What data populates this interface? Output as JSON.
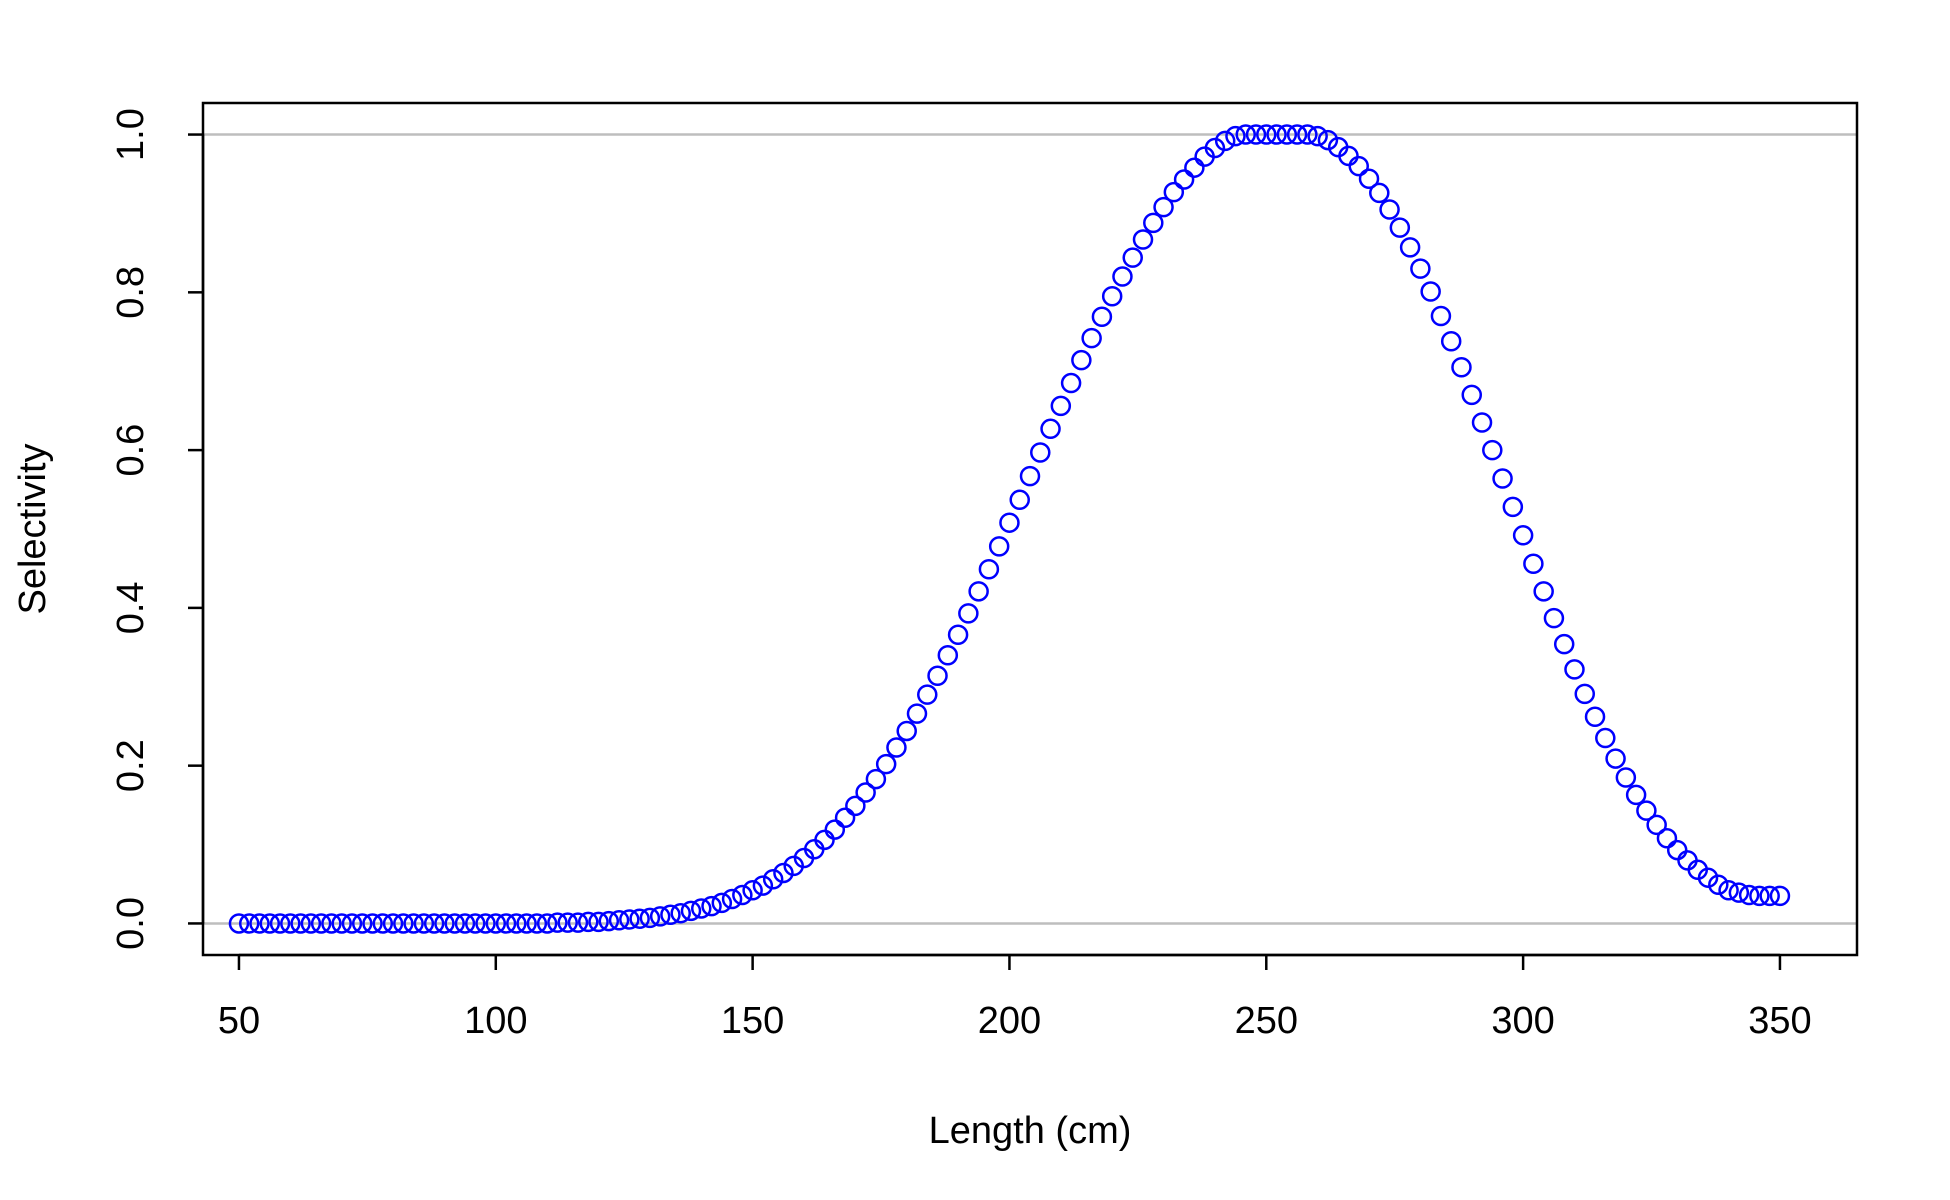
{
  "chart_data": {
    "type": "scatter",
    "title": "",
    "xlabel": "Length (cm)",
    "ylabel": "Selectivity",
    "xlim": [
      43,
      365
    ],
    "ylim": [
      -0.04,
      1.04
    ],
    "x_ticks": [
      50,
      100,
      150,
      200,
      250,
      300,
      350
    ],
    "y_ticks": [
      0.0,
      0.2,
      0.4,
      0.6,
      0.8,
      1.0
    ],
    "x_tick_labels": [
      "50",
      "100",
      "150",
      "200",
      "250",
      "300",
      "350"
    ],
    "y_tick_labels": [
      "0.0",
      "0.2",
      "0.4",
      "0.6",
      "0.8",
      "1.0"
    ],
    "reference_lines_y": [
      0,
      1
    ],
    "marker": "open-circle",
    "grid": false,
    "legend": "none",
    "x": [
      50,
      52,
      54,
      56,
      58,
      60,
      62,
      64,
      66,
      68,
      70,
      72,
      74,
      76,
      78,
      80,
      82,
      84,
      86,
      88,
      90,
      92,
      94,
      96,
      98,
      100,
      102,
      104,
      106,
      108,
      110,
      112,
      114,
      116,
      118,
      120,
      122,
      124,
      126,
      128,
      130,
      132,
      134,
      136,
      138,
      140,
      142,
      144,
      146,
      148,
      150,
      152,
      154,
      156,
      158,
      160,
      162,
      164,
      166,
      168,
      170,
      172,
      174,
      176,
      178,
      180,
      182,
      184,
      186,
      188,
      190,
      192,
      194,
      196,
      198,
      200,
      202,
      204,
      206,
      208,
      210,
      212,
      214,
      216,
      218,
      220,
      222,
      224,
      226,
      228,
      230,
      232,
      234,
      236,
      238,
      240,
      242,
      244,
      246,
      248,
      250,
      252,
      254,
      256,
      258,
      260,
      262,
      264,
      266,
      268,
      270,
      272,
      274,
      276,
      278,
      280,
      282,
      284,
      286,
      288,
      290,
      292,
      294,
      296,
      298,
      300,
      302,
      304,
      306,
      308,
      310,
      312,
      314,
      316,
      318,
      320,
      322,
      324,
      326,
      328,
      330,
      332,
      334,
      336,
      338,
      340,
      342,
      344,
      346,
      348,
      350
    ],
    "y": [
      0.0,
      0.0,
      0.0,
      0.0,
      0.0,
      0.0,
      0.0,
      0.0,
      0.0,
      0.0,
      0.0,
      0.0,
      0.0,
      0.0,
      0.0,
      0.0,
      0.0,
      0.0,
      0.0,
      0.0,
      0.0,
      0.0,
      0.0,
      0.0,
      0.0,
      0.0,
      0.0,
      0.0,
      0.0,
      0.0,
      0.0,
      0.001,
      0.001,
      0.001,
      0.002,
      0.002,
      0.003,
      0.004,
      0.005,
      0.006,
      0.007,
      0.009,
      0.011,
      0.013,
      0.016,
      0.019,
      0.022,
      0.026,
      0.031,
      0.036,
      0.042,
      0.048,
      0.056,
      0.064,
      0.073,
      0.083,
      0.094,
      0.106,
      0.119,
      0.134,
      0.149,
      0.166,
      0.183,
      0.202,
      0.223,
      0.244,
      0.266,
      0.29,
      0.314,
      0.34,
      0.366,
      0.393,
      0.421,
      0.449,
      0.478,
      0.508,
      0.537,
      0.567,
      0.597,
      0.627,
      0.656,
      0.685,
      0.714,
      0.742,
      0.769,
      0.795,
      0.82,
      0.844,
      0.867,
      0.888,
      0.908,
      0.927,
      0.943,
      0.958,
      0.972,
      0.983,
      0.992,
      0.998,
      1.0,
      1.0,
      1.0,
      1.0,
      1.0,
      1.0,
      1.0,
      0.998,
      0.993,
      0.984,
      0.973,
      0.96,
      0.944,
      0.926,
      0.905,
      0.882,
      0.857,
      0.83,
      0.801,
      0.77,
      0.738,
      0.705,
      0.67,
      0.635,
      0.6,
      0.564,
      0.528,
      0.492,
      0.456,
      0.421,
      0.387,
      0.354,
      0.322,
      0.291,
      0.262,
      0.235,
      0.209,
      0.185,
      0.163,
      0.143,
      0.125,
      0.108,
      0.093,
      0.08,
      0.068,
      0.058,
      0.049,
      0.042,
      0.039,
      0.036,
      0.035,
      0.035,
      0.035
    ],
    "colors": {
      "points": "#0000ff",
      "reference_lines": "#bebebe",
      "axes": "#000000"
    }
  }
}
